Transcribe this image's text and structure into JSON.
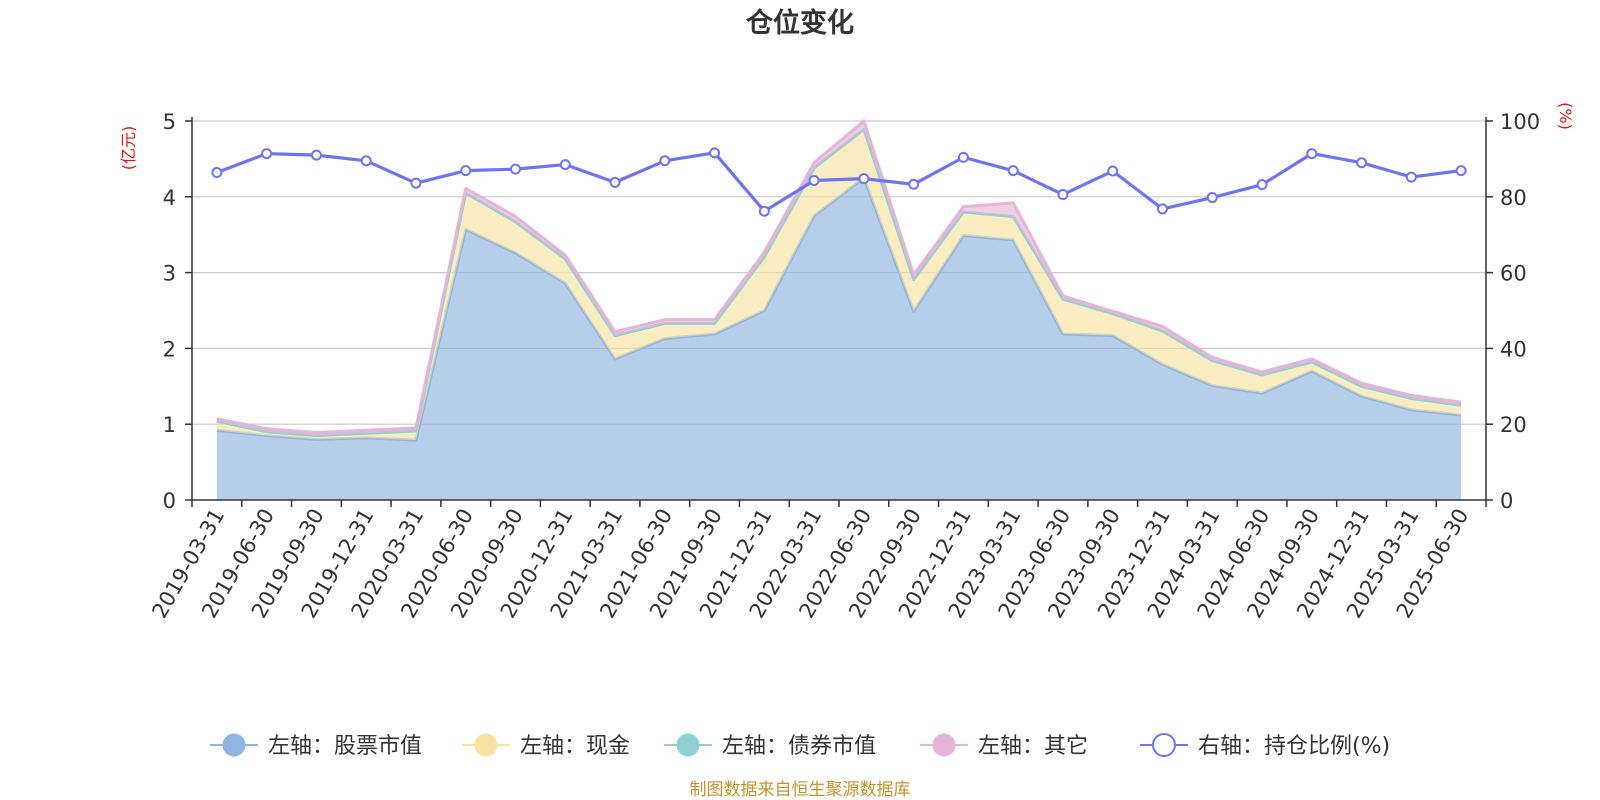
{
  "chart_data": {
    "type": "area",
    "title": "仓位变化",
    "left_unit": "(亿元)",
    "right_unit": "(%)",
    "source": "制图数据来自恒生聚源数据库",
    "x": [
      "2019-03-31",
      "2019-06-30",
      "2019-09-30",
      "2019-12-31",
      "2020-03-31",
      "2020-06-30",
      "2020-09-30",
      "2020-12-31",
      "2021-03-31",
      "2021-06-30",
      "2021-09-30",
      "2021-12-31",
      "2022-03-31",
      "2022-06-30",
      "2022-09-30",
      "2022-12-31",
      "2023-03-31",
      "2023-06-30",
      "2023-09-30",
      "2023-12-31",
      "2024-03-31",
      "2024-06-30",
      "2024-09-30",
      "2024-12-31",
      "2025-03-31",
      "2025-06-30"
    ],
    "left_ylim": [
      0,
      5
    ],
    "left_ticks": [
      "0",
      "1",
      "2",
      "3",
      "4",
      "5"
    ],
    "right_ylim": [
      0,
      100
    ],
    "right_ticks": [
      "0",
      "20",
      "40",
      "60",
      "80",
      "100"
    ],
    "grid": true,
    "legend_position": "bottom",
    "series": [
      {
        "name": "左轴：股票市值",
        "axis": "left",
        "stack": true,
        "color": "#91b4e0",
        "values": [
          0.92,
          0.85,
          0.8,
          0.82,
          0.79,
          3.57,
          3.26,
          2.86,
          1.86,
          2.13,
          2.19,
          2.5,
          3.75,
          4.25,
          2.49,
          3.49,
          3.43,
          2.19,
          2.17,
          1.79,
          1.51,
          1.41,
          1.7,
          1.37,
          1.19,
          1.12
        ]
      },
      {
        "name": "左轴：现金",
        "axis": "left",
        "stack": true,
        "color": "#f7e3a1",
        "values": [
          0.12,
          0.05,
          0.05,
          0.06,
          0.12,
          0.48,
          0.41,
          0.32,
          0.31,
          0.2,
          0.14,
          0.71,
          0.63,
          0.64,
          0.42,
          0.31,
          0.31,
          0.46,
          0.29,
          0.44,
          0.33,
          0.24,
          0.12,
          0.13,
          0.15,
          0.13
        ]
      },
      {
        "name": "左轴：债券市值",
        "axis": "left",
        "stack": true,
        "color": "#8fd0d3",
        "values": [
          0,
          0,
          0,
          0,
          0,
          0,
          0,
          0,
          0,
          0,
          0,
          0,
          0,
          0,
          0,
          0,
          0,
          0,
          0,
          0,
          0,
          0,
          0,
          0,
          0,
          0
        ]
      },
      {
        "name": "左轴：其它",
        "axis": "left",
        "stack": true,
        "color": "#e6b4d8",
        "values": [
          0.03,
          0.04,
          0.04,
          0.04,
          0.04,
          0.06,
          0.07,
          0.05,
          0.05,
          0.05,
          0.05,
          0.06,
          0.07,
          0.11,
          0.06,
          0.07,
          0.18,
          0.04,
          0.03,
          0.06,
          0.04,
          0.04,
          0.04,
          0.04,
          0.04,
          0.04
        ]
      },
      {
        "name": "右轴：持仓比例(%)",
        "axis": "right",
        "stack": false,
        "color": "#6f74f2",
        "values": [
          86.4,
          91.4,
          91.0,
          89.5,
          83.6,
          86.9,
          87.3,
          88.5,
          83.8,
          89.5,
          91.6,
          76.2,
          84.3,
          84.8,
          83.3,
          90.4,
          86.9,
          80.6,
          86.8,
          76.8,
          79.8,
          83.2,
          91.4,
          89.0,
          85.2,
          86.9
        ]
      }
    ]
  }
}
